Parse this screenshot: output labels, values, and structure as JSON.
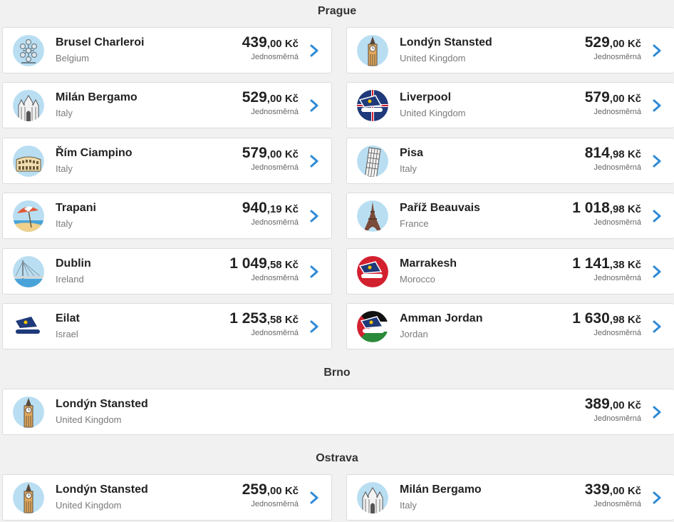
{
  "accent": "#2e8ad6",
  "sections": [
    {
      "title": "Prague",
      "routes": [
        {
          "city": "Brusel Charleroi",
          "country": "Belgium",
          "price_main": "439",
          "price_rest": ",00 Kč",
          "trip": "Jednosměrná",
          "icon": "atomium-icon"
        },
        {
          "city": "Londýn Stansted",
          "country": "United Kingdom",
          "price_main": "529",
          "price_rest": ",00 Kč",
          "trip": "Jednosměrná",
          "icon": "big-ben-icon"
        },
        {
          "city": "Milán Bergamo",
          "country": "Italy",
          "price_main": "529",
          "price_rest": ",00 Kč",
          "trip": "Jednosměrná",
          "icon": "milan-cathedral-icon"
        },
        {
          "city": "Liverpool",
          "country": "United Kingdom",
          "price_main": "579",
          "price_rest": ",00 Kč",
          "trip": "Jednosměrná",
          "icon": "plane-tail-uk-flag-icon"
        },
        {
          "city": "Řím Ciampino",
          "country": "Italy",
          "price_main": "579",
          "price_rest": ",00 Kč",
          "trip": "Jednosměrná",
          "icon": "colosseum-icon"
        },
        {
          "city": "Pisa",
          "country": "Italy",
          "price_main": "814",
          "price_rest": ",98 Kč",
          "trip": "Jednosměrná",
          "icon": "leaning-tower-icon"
        },
        {
          "city": "Trapani",
          "country": "Italy",
          "price_main": "940",
          "price_rest": ",19 Kč",
          "trip": "Jednosměrná",
          "icon": "beach-umbrella-icon"
        },
        {
          "city": "Paříž Beauvais",
          "country": "France",
          "price_main": "1 018",
          "price_rest": ",98 Kč",
          "trip": "Jednosměrná",
          "icon": "eiffel-tower-icon"
        },
        {
          "city": "Dublin",
          "country": "Ireland",
          "price_main": "1 049",
          "price_rest": ",58 Kč",
          "trip": "Jednosměrná",
          "icon": "bridge-icon"
        },
        {
          "city": "Marrakesh",
          "country": "Morocco",
          "price_main": "1 141",
          "price_rest": ",38 Kč",
          "trip": "Jednosměrná",
          "icon": "plane-tail-red-icon"
        },
        {
          "city": "Eilat",
          "country": "Israel",
          "price_main": "1 253",
          "price_rest": ",58 Kč",
          "trip": "Jednosměrná",
          "icon": "plane-tail-white-icon"
        },
        {
          "city": "Amman Jordan",
          "country": "Jordan",
          "price_main": "1 630",
          "price_rest": ",98 Kč",
          "trip": "Jednosměrná",
          "icon": "plane-tail-jordan-flag-icon"
        }
      ]
    },
    {
      "title": "Brno",
      "routes": [
        {
          "city": "Londýn Stansted",
          "country": "United Kingdom",
          "price_main": "389",
          "price_rest": ",00 Kč",
          "trip": "Jednosměrná",
          "icon": "big-ben-icon"
        }
      ]
    },
    {
      "title": "Ostrava",
      "routes": [
        {
          "city": "Londýn Stansted",
          "country": "United Kingdom",
          "price_main": "259",
          "price_rest": ",00 Kč",
          "trip": "Jednosměrná",
          "icon": "big-ben-icon"
        },
        {
          "city": "Milán Bergamo",
          "country": "Italy",
          "price_main": "339",
          "price_rest": ",00 Kč",
          "trip": "Jednosměrná",
          "icon": "milan-cathedral-icon"
        }
      ]
    }
  ]
}
